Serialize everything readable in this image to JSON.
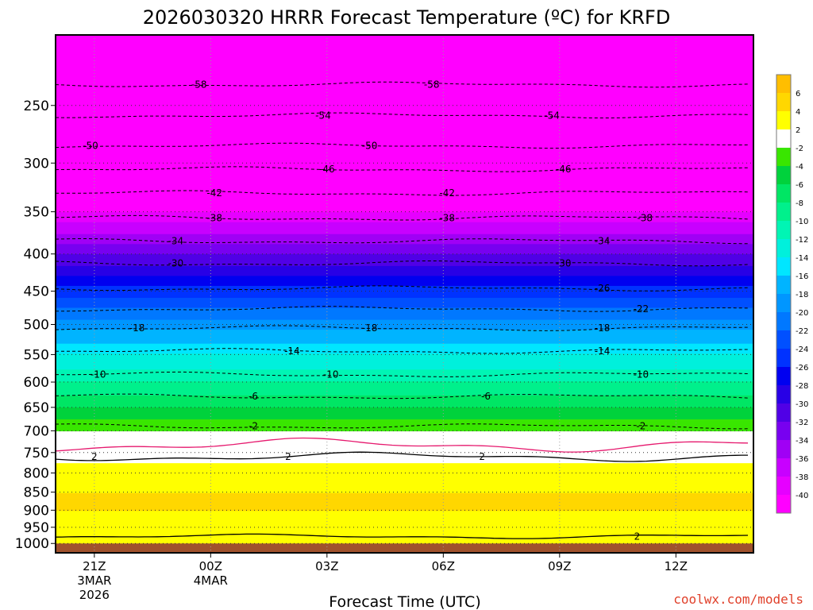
{
  "chart_data": {
    "type": "heatmap",
    "title": "2026030320 HRRR Forecast Temperature (ºC) for KRFD",
    "xlabel": "Forecast Time (UTC)",
    "credit": "coolwx.com/models",
    "x_ticks": [
      {
        "hour": 1,
        "lines": [
          "21Z",
          "3MAR",
          "2026"
        ]
      },
      {
        "hour": 4,
        "lines": [
          "00Z",
          "4MAR"
        ]
      },
      {
        "hour": 7,
        "lines": [
          "03Z"
        ]
      },
      {
        "hour": 10,
        "lines": [
          "06Z"
        ]
      },
      {
        "hour": 13,
        "lines": [
          "09Z"
        ]
      },
      {
        "hour": 16,
        "lines": [
          "12Z"
        ]
      }
    ],
    "x_range_hours": [
      0,
      18
    ],
    "y_axis": "pressure (hPa), log scale, inverted",
    "y_ticks": [
      250,
      300,
      350,
      400,
      450,
      500,
      550,
      600,
      650,
      700,
      750,
      800,
      850,
      900,
      950,
      1000
    ],
    "y_range_hpa": [
      200,
      1030
    ],
    "colorbar": {
      "labels": [
        "6",
        "4",
        "2",
        "-2",
        "-4",
        "-6",
        "-8",
        "-10",
        "-12",
        "-14",
        "-16",
        "-18",
        "-20",
        "-22",
        "-24",
        "-26",
        "-28",
        "-30",
        "-32",
        "-34",
        "-36",
        "-38",
        "-40"
      ],
      "colors": [
        "#ffbe00",
        "#ffd700",
        "#ffff00",
        "#ffffff",
        "#39e600",
        "#00d23c",
        "#00e664",
        "#00f08c",
        "#00f5b4",
        "#00f0dc",
        "#00e6ff",
        "#00b4ff",
        "#0096ff",
        "#0078ff",
        "#0050ff",
        "#0032ff",
        "#0000f0",
        "#2800e6",
        "#5000e6",
        "#7800f0",
        "#a000f5",
        "#c800ff",
        "#e600ff",
        "#ff00ff"
      ]
    },
    "levels": [
      {
        "p": 200,
        "t": -61
      },
      {
        "p": 250,
        "t": -56
      },
      {
        "p": 300,
        "t": -48
      },
      {
        "p": 350,
        "t": -40
      },
      {
        "p": 400,
        "t": -32
      },
      {
        "p": 450,
        "t": -25
      },
      {
        "p": 500,
        "t": -19
      },
      {
        "p": 550,
        "t": -14
      },
      {
        "p": 600,
        "t": -10
      },
      {
        "p": 650,
        "t": -6
      },
      {
        "p": 700,
        "t": -2
      },
      {
        "p": 750,
        "t": 1
      },
      {
        "p": 800,
        "t": 3
      },
      {
        "p": 850,
        "t": 4
      },
      {
        "p": 900,
        "t": 4
      },
      {
        "p": 950,
        "t": 3
      },
      {
        "p": 1000,
        "t": 2
      }
    ],
    "contours": [
      {
        "value": -58,
        "pressure": 234,
        "labels": [
          [
            3.7,
            "-58"
          ],
          [
            9.7,
            "-58"
          ]
        ]
      },
      {
        "value": -54,
        "pressure": 258,
        "labels": [
          [
            6.9,
            "-54"
          ],
          [
            12.8,
            "-54"
          ]
        ]
      },
      {
        "value": -50,
        "pressure": 284,
        "labels": [
          [
            0.9,
            "-50"
          ],
          [
            8.1,
            "-50"
          ]
        ]
      },
      {
        "value": -46,
        "pressure": 306,
        "labels": [
          [
            7.0,
            "-46"
          ],
          [
            13.1,
            "-46"
          ]
        ]
      },
      {
        "value": -42,
        "pressure": 330,
        "labels": [
          [
            4.1,
            "-42"
          ],
          [
            10.1,
            "-42"
          ]
        ]
      },
      {
        "value": -38,
        "pressure": 357,
        "labels": [
          [
            4.1,
            "-38"
          ],
          [
            10.1,
            "-38"
          ],
          [
            15.2,
            "-38"
          ]
        ]
      },
      {
        "value": -34,
        "pressure": 384,
        "labels": [
          [
            3.1,
            "-34"
          ],
          [
            14.1,
            "-34"
          ]
        ]
      },
      {
        "value": -30,
        "pressure": 412,
        "labels": [
          [
            3.1,
            "-30"
          ],
          [
            13.1,
            "-30"
          ]
        ]
      },
      {
        "value": -26,
        "pressure": 446,
        "labels": [
          [
            14.1,
            "-26"
          ]
        ]
      },
      {
        "value": -22,
        "pressure": 476,
        "labels": [
          [
            15.1,
            "-22"
          ]
        ]
      },
      {
        "value": -18,
        "pressure": 506,
        "labels": [
          [
            2.1,
            "-18"
          ],
          [
            8.1,
            "-18"
          ],
          [
            14.1,
            "-18"
          ]
        ]
      },
      {
        "value": -14,
        "pressure": 544,
        "labels": [
          [
            6.1,
            "-14"
          ],
          [
            14.1,
            "-14"
          ]
        ]
      },
      {
        "value": -10,
        "pressure": 586,
        "labels": [
          [
            1.1,
            "-10"
          ],
          [
            7.1,
            "-10"
          ],
          [
            15.1,
            "-10"
          ]
        ]
      },
      {
        "value": -6,
        "pressure": 628,
        "labels": [
          [
            5.1,
            "-6"
          ],
          [
            11.1,
            "-6"
          ]
        ]
      },
      {
        "value": -2,
        "pressure": 690,
        "labels": [
          [
            5.1,
            "-2"
          ],
          [
            15.1,
            "-2"
          ]
        ]
      }
    ],
    "freezing_line_pressure": 718,
    "warm_contour_2": {
      "pressure": 760,
      "labels": [
        [
          1.0,
          "2"
        ],
        [
          6.0,
          "2"
        ],
        [
          11.0,
          "2"
        ]
      ]
    },
    "surface_contour_2": {
      "pressure": 978,
      "labels": [
        [
          15.0,
          "2"
        ]
      ]
    },
    "ground_pressure": 1000
  }
}
